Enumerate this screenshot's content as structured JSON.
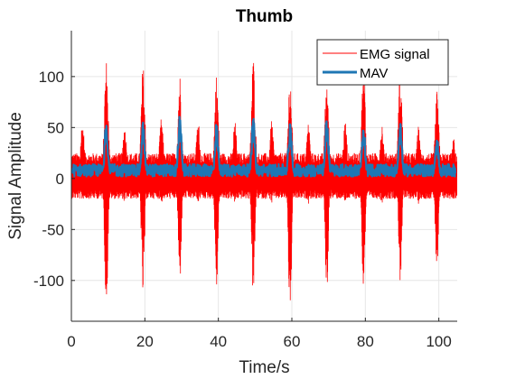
{
  "chart_data": {
    "type": "line",
    "title": "Thumb",
    "xlabel": "Time/s",
    "ylabel": "Signal Amplitude",
    "xlim": [
      0,
      105
    ],
    "ylim": [
      -140,
      145
    ],
    "xticks": [
      0,
      20,
      40,
      60,
      80,
      100
    ],
    "yticks": [
      -100,
      -50,
      0,
      50,
      100
    ],
    "grid": true,
    "legend_position": "top-right",
    "series": [
      {
        "name": "EMG signal",
        "color": "#ff0000",
        "description_type": "dense raw signal envelope",
        "baseline_range": [
          -20,
          25
        ],
        "bursts": [
          {
            "center": 3,
            "max": 58,
            "min": -22
          },
          {
            "center": 9.5,
            "max": 118,
            "min": -130
          },
          {
            "center": 14.5,
            "max": 55,
            "min": -25
          },
          {
            "center": 19.5,
            "max": 112,
            "min": -118
          },
          {
            "center": 24.5,
            "max": 60,
            "min": -25
          },
          {
            "center": 29.5,
            "max": 104,
            "min": -105
          },
          {
            "center": 34.5,
            "max": 58,
            "min": -25
          },
          {
            "center": 39.5,
            "max": 103,
            "min": -112
          },
          {
            "center": 44.5,
            "max": 58,
            "min": -25
          },
          {
            "center": 49.5,
            "max": 120,
            "min": -120
          },
          {
            "center": 54.5,
            "max": 58,
            "min": -25
          },
          {
            "center": 59.5,
            "max": 103,
            "min": -140
          },
          {
            "center": 64.5,
            "max": 56,
            "min": -25
          },
          {
            "center": 69.5,
            "max": 100,
            "min": -115
          },
          {
            "center": 74.5,
            "max": 58,
            "min": -25
          },
          {
            "center": 79.5,
            "max": 112,
            "min": -110
          },
          {
            "center": 84.5,
            "max": 56,
            "min": -25
          },
          {
            "center": 89.5,
            "max": 110,
            "min": -102
          },
          {
            "center": 94.5,
            "max": 52,
            "min": -25
          },
          {
            "center": 99.5,
            "max": 86,
            "min": -97
          },
          {
            "center": 104,
            "max": 40,
            "min": -20
          }
        ]
      },
      {
        "name": "MAV",
        "color": "#1f77b4",
        "description_type": "mean absolute value envelope",
        "baseline_range": [
          2,
          14
        ],
        "bursts": [
          {
            "center": 9.5,
            "max": 58
          },
          {
            "center": 19.5,
            "max": 57
          },
          {
            "center": 29.5,
            "max": 63
          },
          {
            "center": 39.5,
            "max": 56
          },
          {
            "center": 49.5,
            "max": 61
          },
          {
            "center": 59.5,
            "max": 56
          },
          {
            "center": 69.5,
            "max": 61
          },
          {
            "center": 79.5,
            "max": 56
          },
          {
            "center": 89.5,
            "max": 55
          },
          {
            "center": 99.5,
            "max": 40
          }
        ]
      }
    ]
  }
}
